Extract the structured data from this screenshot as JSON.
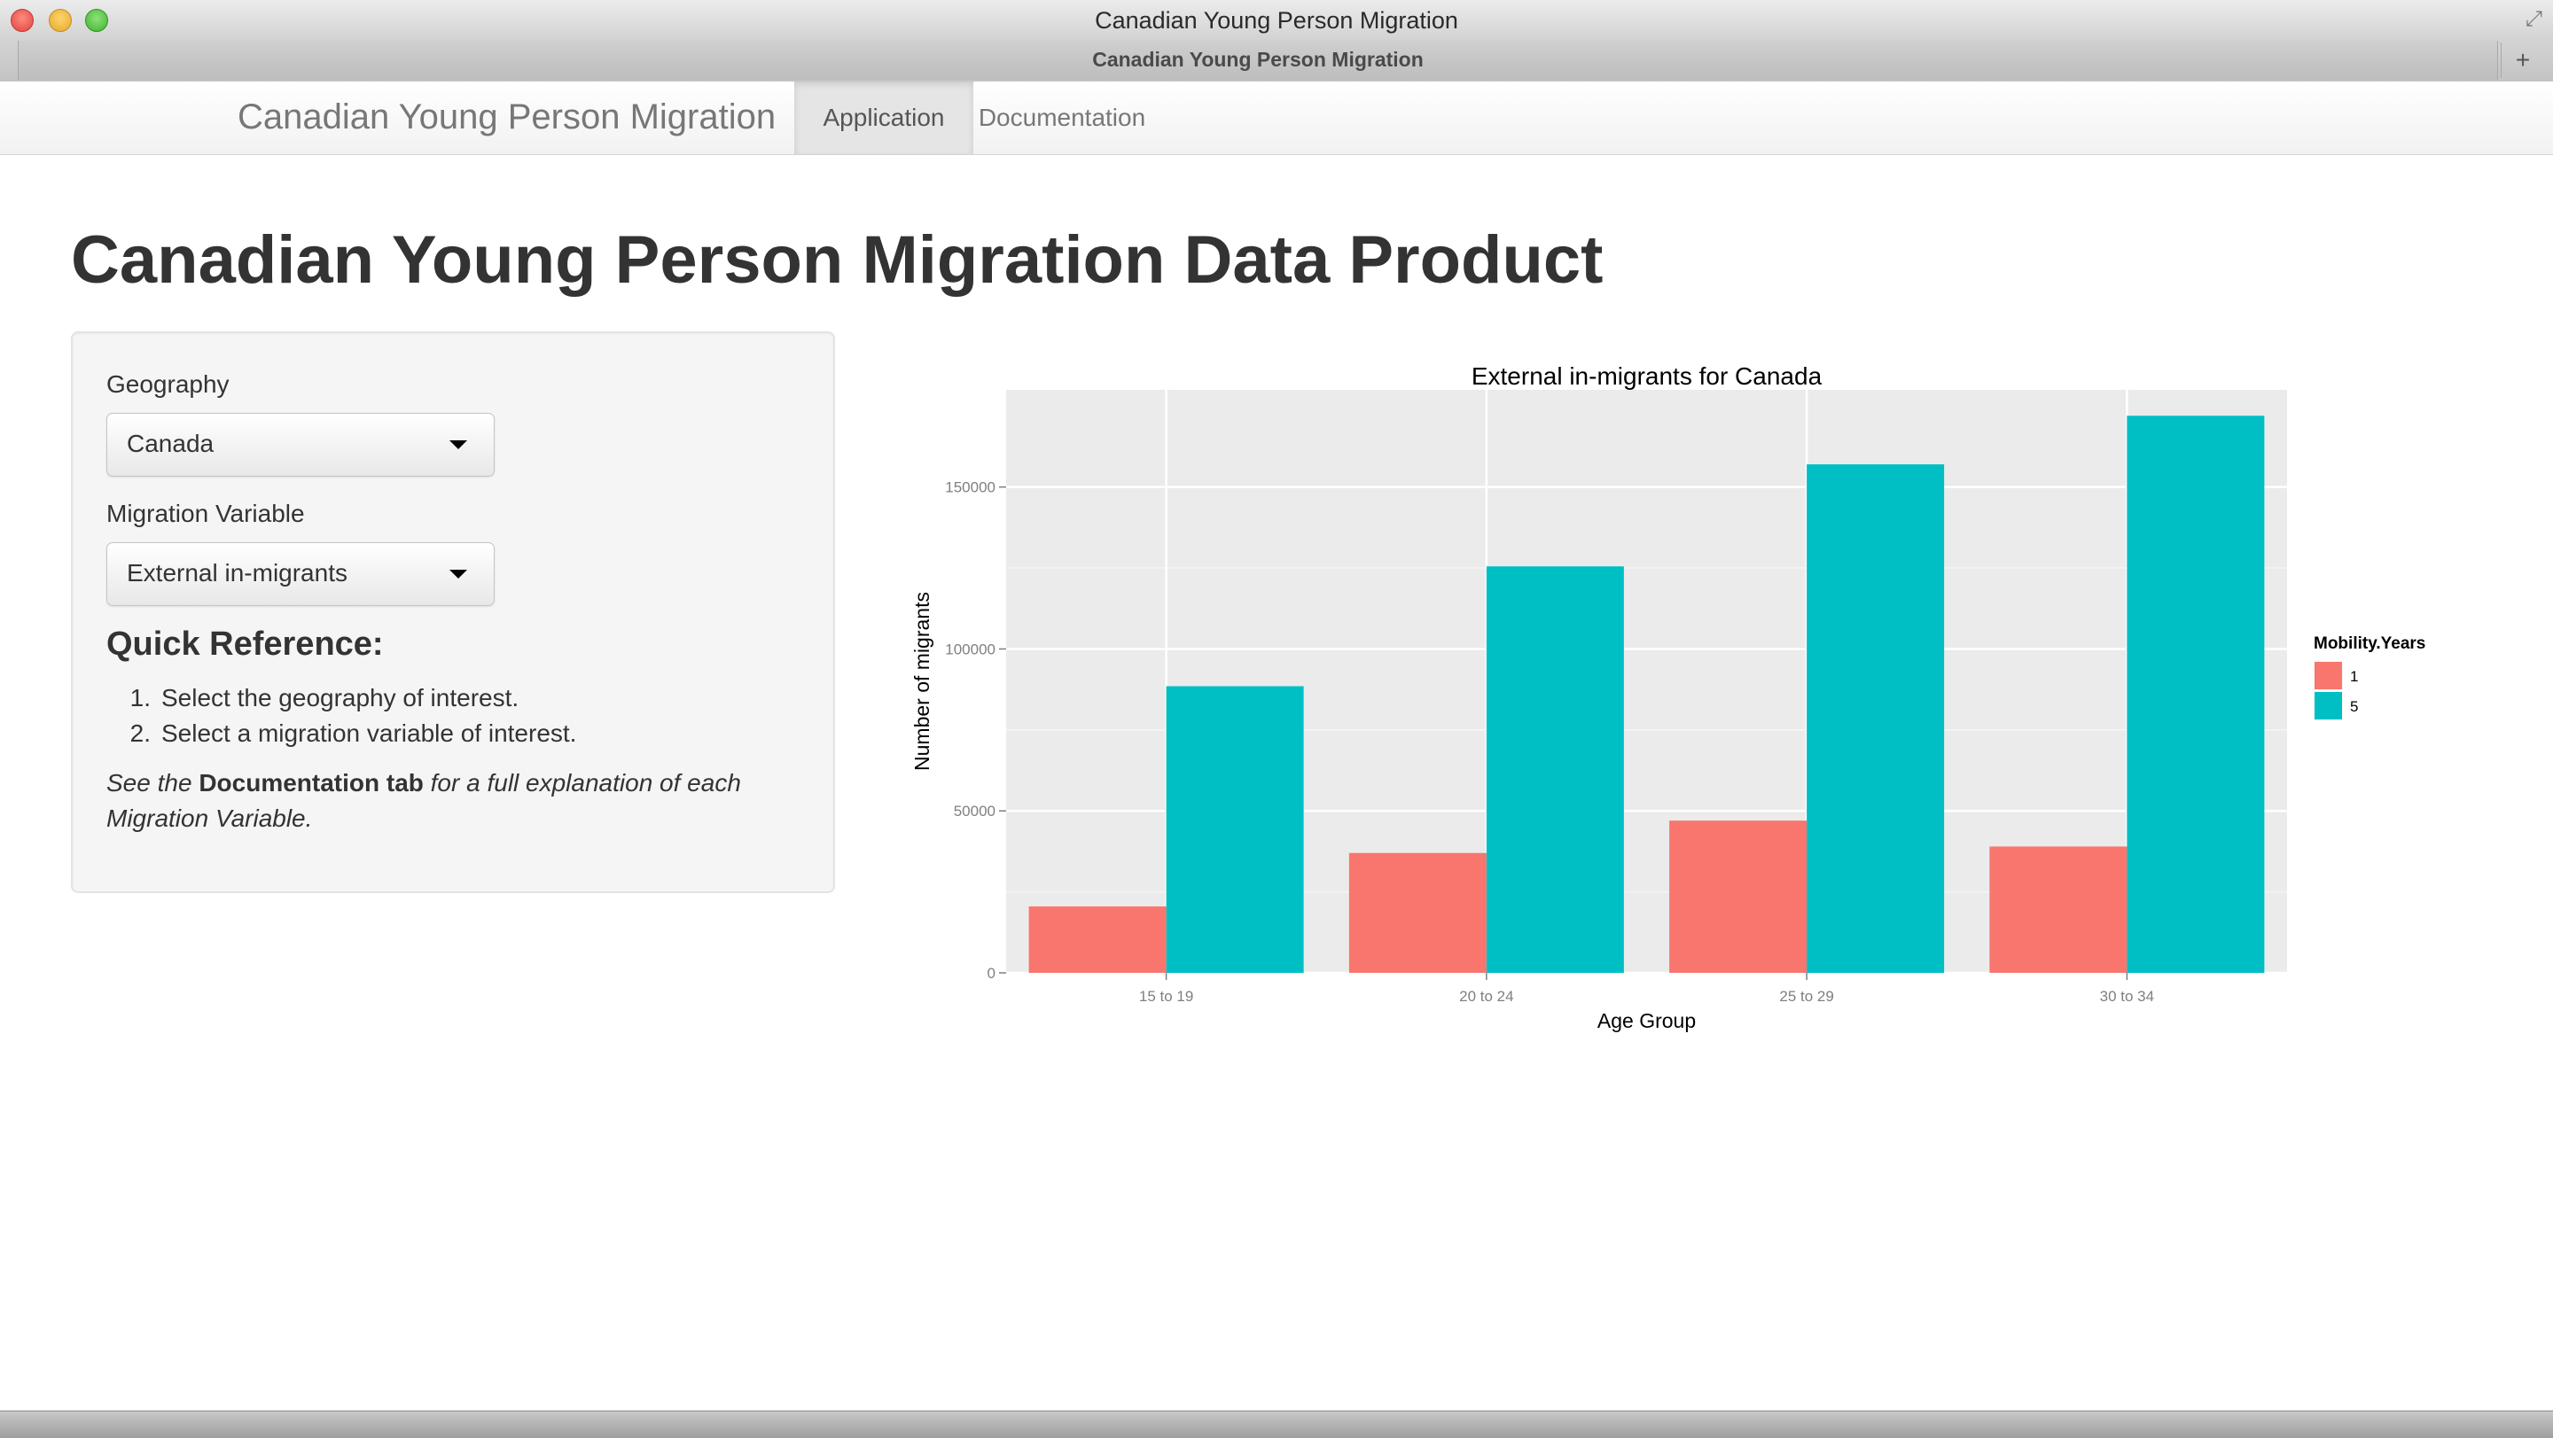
{
  "window": {
    "title": "Canadian Young Person Migration",
    "tab_title": "Canadian Young Person Migration"
  },
  "navbar": {
    "brand": "Canadian Young Person Migration",
    "tabs": [
      "Application",
      "Documentation"
    ],
    "active_tab": "Application"
  },
  "page": {
    "title": "Canadian Young Person Migration Data Product"
  },
  "sidebar": {
    "geography_label": "Geography",
    "geography_value": "Canada",
    "variable_label": "Migration Variable",
    "variable_value": "External in-migrants",
    "quick_ref_title": "Quick Reference:",
    "quick_ref_items": [
      {
        "num": "1.",
        "text": "Select the geography of interest."
      },
      {
        "num": "2.",
        "text": "Select a migration variable of interest."
      }
    ],
    "note_pre": "See the ",
    "note_bold": "Documentation tab",
    "note_post": " for a full explanation of each Migration Variable."
  },
  "chart_data": {
    "type": "bar",
    "title": "External in-migrants for Canada",
    "xlabel": "Age Group",
    "ylabel": "Number of migrants",
    "categories": [
      "15 to 19",
      "20 to 24",
      "25 to 29",
      "30 to 34"
    ],
    "series": [
      {
        "name": "1",
        "color": "#F8766D",
        "values": [
          20500,
          37000,
          47000,
          39000
        ]
      },
      {
        "name": "5",
        "color": "#00BFC4",
        "values": [
          88500,
          125500,
          157000,
          172000
        ]
      }
    ],
    "yticks": [
      0,
      50000,
      100000,
      150000
    ],
    "ylim": [
      0,
      180000
    ],
    "legend_title": "Mobility.Years",
    "legend_position": "right",
    "grid": true,
    "panel_color": "#EBEBEB"
  }
}
